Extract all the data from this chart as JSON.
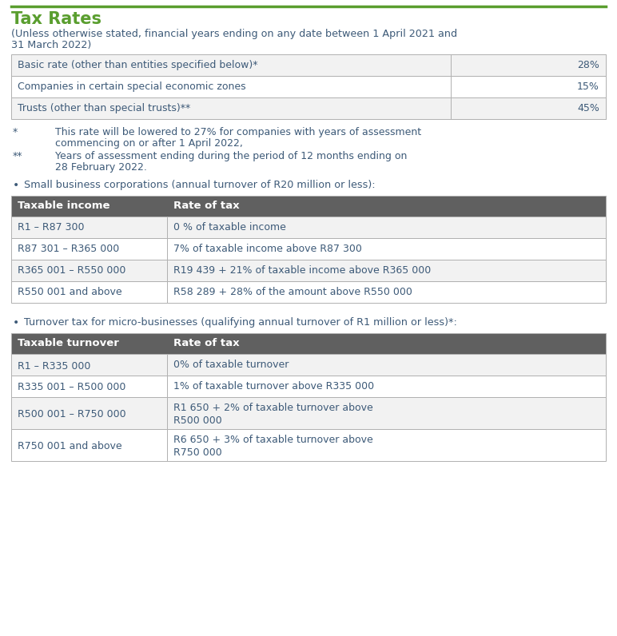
{
  "title": "Tax Rates",
  "subtitle_line1": "(Unless otherwise stated, financial years ending on any date between 1 April 2021 and",
  "subtitle_line2": "31 March 2022)",
  "title_color": "#5a9e2f",
  "text_color": "#3d5a78",
  "header_bg": "#606060",
  "header_text": "#ffffff",
  "row_bg_alt": "#f2f2f2",
  "row_bg": "#ffffff",
  "border_color": "#b0b0b0",
  "top_line_color": "#5a9e2f",
  "basic_rows": [
    [
      "Basic rate (other than entities specified below)*",
      "28%"
    ],
    [
      "Companies in certain special economic zones",
      "15%"
    ],
    [
      "Trusts (other than special trusts)**",
      "45%"
    ]
  ],
  "footnote1_marker": "*",
  "footnote1_text1": "This rate will be lowered to 27% for companies with years of assessment",
  "footnote1_text2": "commencing on or after 1 April 2022,",
  "footnote2_marker": "**",
  "footnote2_text1": "Years of assessment ending during the period of 12 months ending on",
  "footnote2_text2": "28 February 2022.",
  "sbc_bullet": "Small business corporations (annual turnover of R20 million or less):",
  "sbc_headers": [
    "Taxable income",
    "Rate of tax"
  ],
  "sbc_rows": [
    [
      "R1 – R87 300",
      "0 % of taxable income"
    ],
    [
      "R87 301 – R365 000",
      "7% of taxable income above R87 300"
    ],
    [
      "R365 001 – R550 000",
      "R19 439 + 21% of taxable income above R365 000"
    ],
    [
      "R550 001 and above",
      "R58 289 + 28% of the amount above R550 000"
    ]
  ],
  "micro_bullet": "Turnover tax for micro-businesses (qualifying annual turnover of R1 million or less)*:",
  "micro_headers": [
    "Taxable turnover",
    "Rate of tax"
  ],
  "micro_rows": [
    [
      "R1 – R335 000",
      "0% of taxable turnover"
    ],
    [
      "R335 001 – R500 000",
      "1% of taxable turnover above R335 000"
    ],
    [
      "R500 001 – R750 000",
      "R1 650 + 2% of taxable turnover above\nR500 000"
    ],
    [
      "R750 001 and above",
      "R6 650 + 3% of taxable turnover above\nR750 000"
    ]
  ]
}
